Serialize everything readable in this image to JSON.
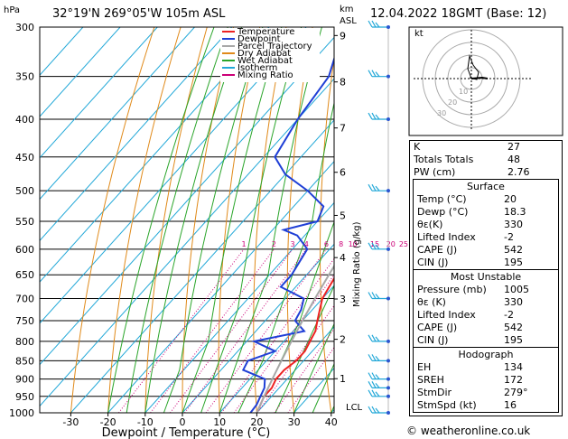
{
  "header": {
    "location": "32°19'N  269°05'W  105m  ASL",
    "datetime": "12.04.2022  18GMT  (Base: 12)"
  },
  "axes": {
    "p_unit": "hPa",
    "km_unit": "km",
    "asl": "ASL",
    "x_label": "Dewpoint / Temperature (°C)",
    "mixing_ratio_label": "Mixing Ratio (g/kg)",
    "lcl_label": "LCL",
    "pressure_ticks": [
      "300",
      "350",
      "400",
      "450",
      "500",
      "550",
      "600",
      "650",
      "700",
      "750",
      "800",
      "850",
      "900",
      "950",
      "1000"
    ],
    "temp_ticks": [
      "-30",
      "-20",
      "-10",
      "0",
      "10",
      "20",
      "30",
      "40"
    ],
    "km_ticks": [
      "9",
      "8",
      "7",
      "6",
      "5",
      "4",
      "3",
      "2",
      "1"
    ],
    "mixing_ratio_values": [
      "1",
      "2",
      "3",
      "4",
      "6",
      "8",
      "10",
      "15",
      "20",
      "25"
    ]
  },
  "legend": [
    {
      "label": "Temperature",
      "color": "#ee2222"
    },
    {
      "label": "Dewpoint",
      "color": "#1f3fd6"
    },
    {
      "label": "Parcel Trajectory",
      "color": "#a8a8a8"
    },
    {
      "label": "Dry Adiabat",
      "color": "#e08a1a"
    },
    {
      "label": "Wet Adiabat",
      "color": "#2aa52a"
    },
    {
      "label": "Isotherm",
      "color": "#22a8d8"
    },
    {
      "label": "Mixing Ratio",
      "color": "#cc0077"
    }
  ],
  "chart_data": {
    "type": "line",
    "title": "",
    "xlabel": "Dewpoint / Temperature (°C)",
    "ylabel": "hPa",
    "xlim": [
      -35,
      40
    ],
    "ylim": [
      1000,
      300
    ],
    "y_scale": "log",
    "series": [
      {
        "name": "Temperature",
        "points": [
          [
            1000,
            20
          ],
          [
            975,
            19
          ],
          [
            950,
            18
          ],
          [
            925,
            18
          ],
          [
            900,
            17
          ],
          [
            875,
            17
          ],
          [
            850,
            18
          ],
          [
            825,
            18
          ],
          [
            800,
            17
          ],
          [
            775,
            16
          ],
          [
            750,
            14
          ],
          [
            725,
            12
          ],
          [
            700,
            10
          ],
          [
            675,
            9
          ],
          [
            650,
            8
          ],
          [
            625,
            6
          ],
          [
            600,
            4
          ],
          [
            575,
            2
          ],
          [
            550,
            0
          ],
          [
            525,
            -2
          ],
          [
            500,
            -5
          ],
          [
            475,
            -7
          ],
          [
            450,
            -10
          ],
          [
            425,
            -13
          ],
          [
            400,
            -17
          ],
          [
            375,
            -21
          ],
          [
            350,
            -26
          ],
          [
            325,
            -30
          ],
          [
            300,
            -34
          ]
        ]
      },
      {
        "name": "Dewpoint",
        "points": [
          [
            1000,
            18.3
          ],
          [
            975,
            18
          ],
          [
            950,
            17
          ],
          [
            925,
            16
          ],
          [
            900,
            14
          ],
          [
            875,
            6
          ],
          [
            850,
            5
          ],
          [
            825,
            10
          ],
          [
            800,
            2
          ],
          [
            775,
            13
          ],
          [
            750,
            8
          ],
          [
            725,
            7
          ],
          [
            700,
            5
          ],
          [
            675,
            -4
          ],
          [
            650,
            -4
          ],
          [
            625,
            -5
          ],
          [
            600,
            -6
          ],
          [
            575,
            -12
          ],
          [
            565,
            -17
          ],
          [
            550,
            -10
          ],
          [
            525,
            -12
          ],
          [
            500,
            -20
          ],
          [
            475,
            -30
          ],
          [
            450,
            -37
          ],
          [
            400,
            -40
          ],
          [
            350,
            -42
          ],
          [
            330,
            -45
          ],
          [
            320,
            -44
          ],
          [
            310,
            -38
          ],
          [
            300,
            -30
          ]
        ]
      },
      {
        "name": "Parcel Trajectory",
        "points": [
          [
            1000,
            20
          ],
          [
            950,
            18
          ],
          [
            900,
            16
          ],
          [
            850,
            14
          ],
          [
            800,
            12
          ],
          [
            750,
            10
          ],
          [
            700,
            8
          ],
          [
            650,
            6
          ],
          [
            600,
            4
          ],
          [
            550,
            1
          ],
          [
            500,
            -3
          ],
          [
            450,
            -7
          ],
          [
            400,
            -12
          ],
          [
            350,
            -19
          ],
          [
            300,
            -26
          ]
        ]
      }
    ]
  },
  "wind_barbs": [
    "1000",
    "950",
    "925",
    "900",
    "850",
    "800",
    "700",
    "600",
    "500",
    "400",
    "350",
    "300"
  ],
  "hodograph": {
    "unit": "kt",
    "rings": [
      "10",
      "20",
      "30"
    ]
  },
  "indices": {
    "rows": [
      {
        "label": "K",
        "value": "27"
      },
      {
        "label": "Totals Totals",
        "value": "48"
      },
      {
        "label": "PW (cm)",
        "value": "2.76"
      }
    ]
  },
  "surface": {
    "title": "Surface",
    "rows": [
      {
        "label": "Temp (°C)",
        "value": "20"
      },
      {
        "label": "Dewp (°C)",
        "value": "18.3"
      },
      {
        "label": "θε(K)",
        "value": "330"
      },
      {
        "label": "Lifted Index",
        "value": "-2"
      },
      {
        "label": "CAPE (J)",
        "value": "542"
      },
      {
        "label": "CIN (J)",
        "value": "195"
      }
    ]
  },
  "most_unstable": {
    "title": "Most Unstable",
    "rows": [
      {
        "label": "Pressure (mb)",
        "value": "1005"
      },
      {
        "label": "θε (K)",
        "value": "330"
      },
      {
        "label": "Lifted Index",
        "value": "-2"
      },
      {
        "label": "CAPE (J)",
        "value": "542"
      },
      {
        "label": "CIN (J)",
        "value": "195"
      }
    ]
  },
  "hodograph_table": {
    "title": "Hodograph",
    "rows": [
      {
        "label": "EH",
        "value": "134"
      },
      {
        "label": "SREH",
        "value": "172"
      },
      {
        "label": "StmDir",
        "value": "279°"
      },
      {
        "label": "StmSpd (kt)",
        "value": "16"
      }
    ]
  },
  "footer": "© weatheronline.co.uk"
}
